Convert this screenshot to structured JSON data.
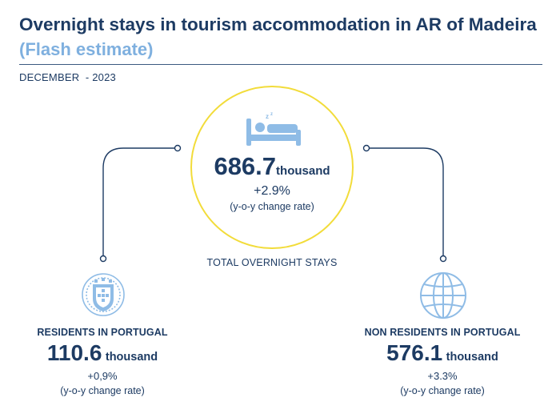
{
  "header": {
    "title": "Overnight stays in tourism accommodation in AR of Madeira",
    "subtitle": "(Flash estimate)",
    "period": "DECEMBER  - 2023"
  },
  "total": {
    "value": "686.7",
    "unit": "thousand",
    "change": "+2.9%",
    "change_note": "(y-o-y change rate)",
    "label": "TOTAL OVERNIGHT STAYS",
    "icon": "bed-icon"
  },
  "residents": {
    "label": "RESIDENTS IN PORTUGAL",
    "value": "110.6",
    "unit": "thousand",
    "change": "+0,9%",
    "change_note": "(y-o-y change rate)",
    "icon": "portugal-flag-icon"
  },
  "non_residents": {
    "label": "NON RESIDENTS IN PORTUGAL",
    "value": "576.1",
    "unit": "thousand",
    "change": "+3.3%",
    "change_note": "(y-o-y change rate)",
    "icon": "globe-icon"
  },
  "colors": {
    "navy": "#1d3b63",
    "light_blue": "#7fb0df",
    "icon_blue": "#8fbce6",
    "circle_yellow": "#f2dc3a"
  }
}
